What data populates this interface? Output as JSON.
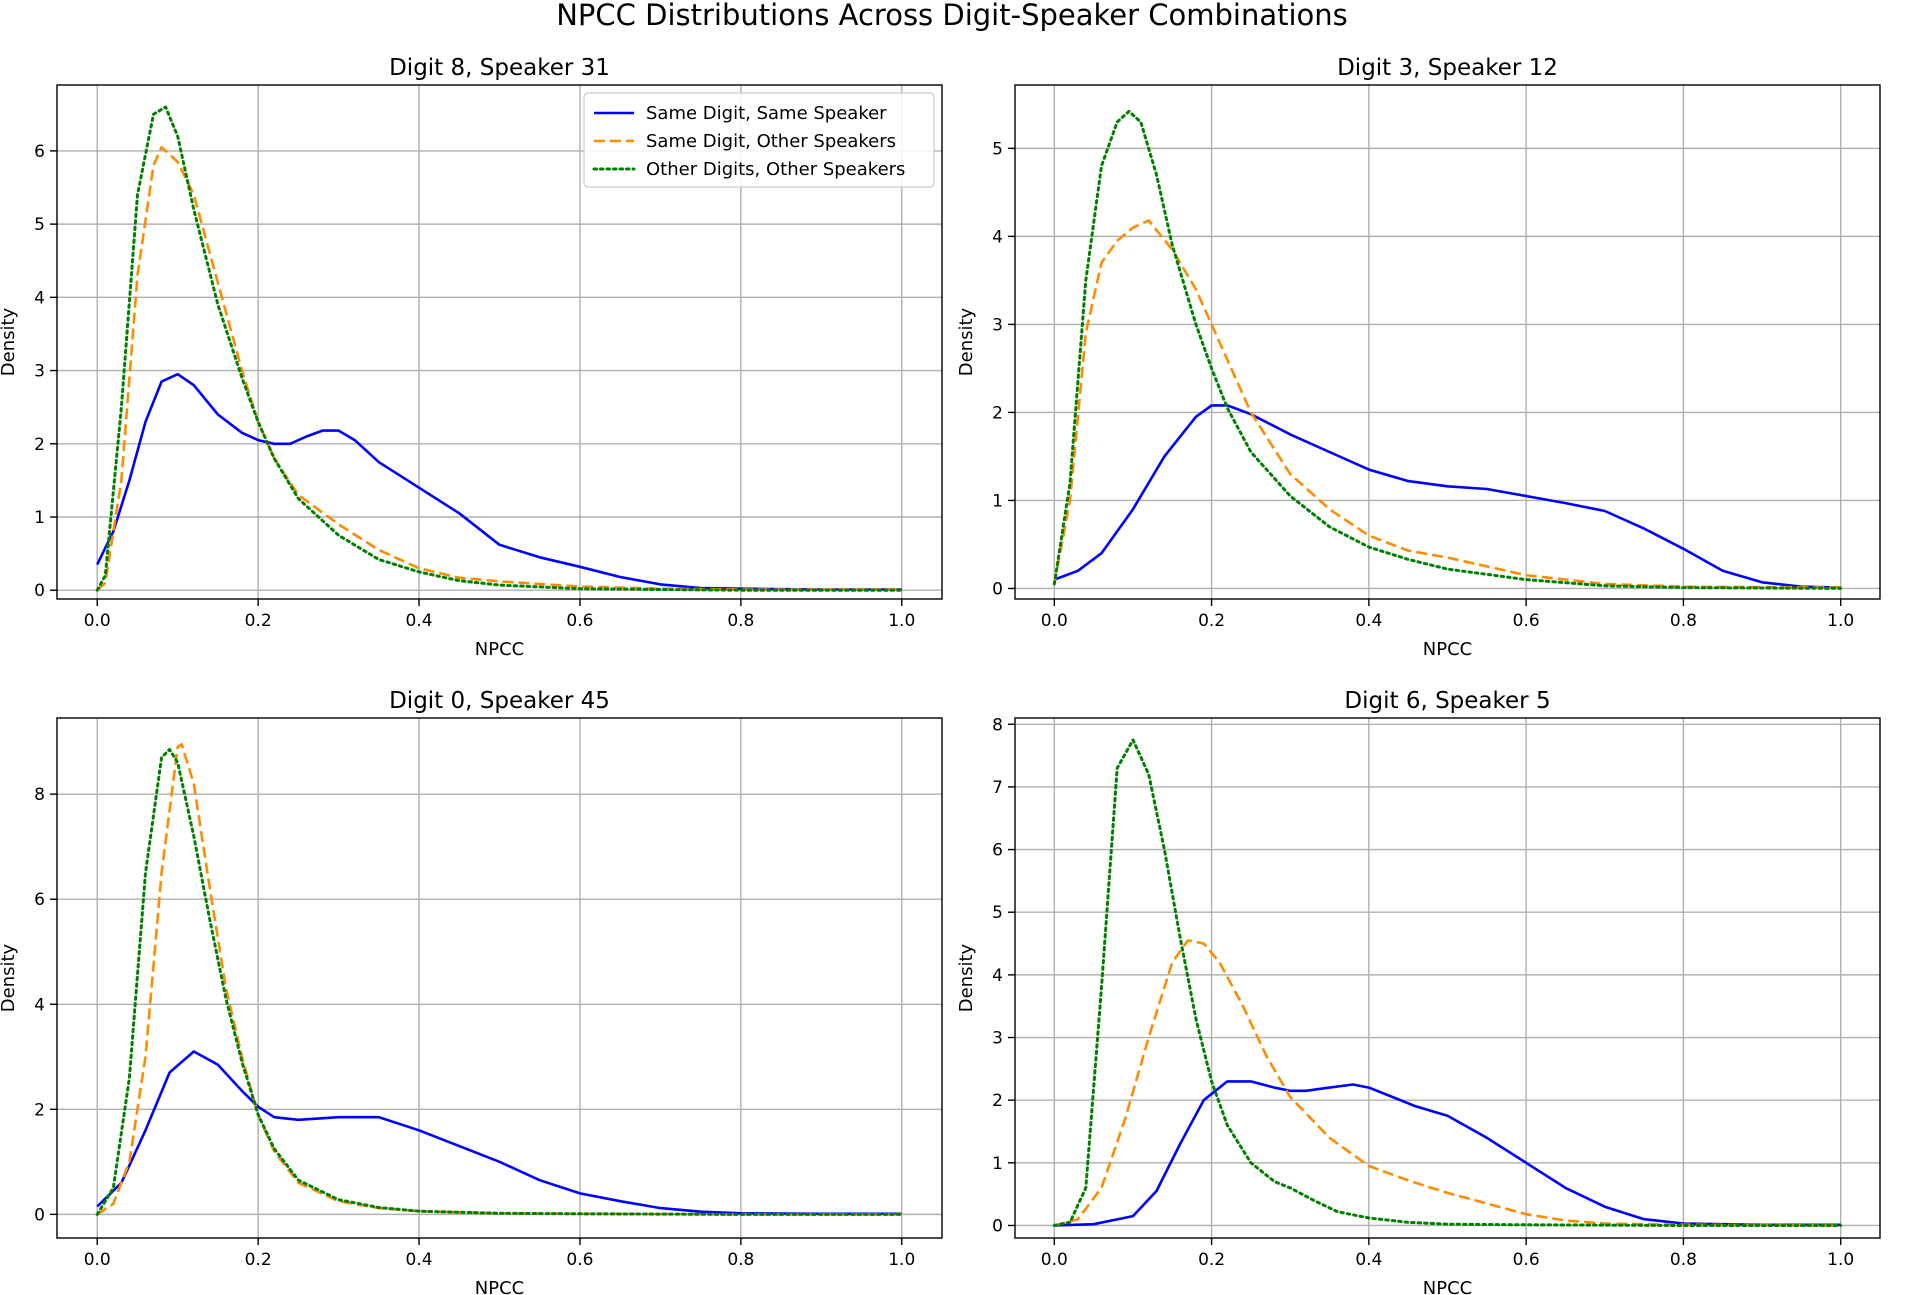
{
  "figure_title": "NPCC Distributions Across Digit-Speaker Combinations",
  "chart_data": [
    {
      "type": "line",
      "title": "Digit 8, Speaker 31",
      "xlabel": "NPCC",
      "ylabel": "Density",
      "xlim": [
        -0.05,
        1.05
      ],
      "ylim": [
        -0.12,
        6.9
      ],
      "xticks": [
        "0.0",
        "0.2",
        "0.4",
        "0.6",
        "0.8",
        "1.0"
      ],
      "yticks": [
        "0",
        "1",
        "2",
        "3",
        "4",
        "5",
        "6"
      ],
      "grid": true,
      "legend": {
        "position": "top-right",
        "entries": [
          "Same Digit, Same Speaker",
          "Same Digit, Other Speakers",
          "Other Digits, Other Speakers"
        ]
      },
      "series": [
        {
          "name": "Same Digit, Same Speaker",
          "color": "#0000ff",
          "dash": "solid",
          "x": [
            0,
            0.02,
            0.04,
            0.06,
            0.08,
            0.1,
            0.12,
            0.15,
            0.18,
            0.2,
            0.22,
            0.24,
            0.26,
            0.28,
            0.3,
            0.32,
            0.35,
            0.4,
            0.45,
            0.5,
            0.55,
            0.6,
            0.65,
            0.7,
            0.75,
            0.8,
            0.9,
            1.0
          ],
          "y": [
            0.35,
            0.8,
            1.5,
            2.3,
            2.85,
            2.95,
            2.8,
            2.4,
            2.15,
            2.05,
            2.0,
            2.0,
            2.1,
            2.18,
            2.18,
            2.05,
            1.75,
            1.4,
            1.05,
            0.62,
            0.45,
            0.32,
            0.18,
            0.08,
            0.03,
            0.02,
            0.01,
            0.01
          ]
        },
        {
          "name": "Same Digit, Other Speakers",
          "color": "#ff8c00",
          "dash": "dashed",
          "x": [
            0,
            0.01,
            0.03,
            0.05,
            0.07,
            0.08,
            0.1,
            0.12,
            0.15,
            0.18,
            0.2,
            0.22,
            0.25,
            0.3,
            0.35,
            0.4,
            0.45,
            0.5,
            0.6,
            0.7,
            0.8,
            1.0
          ],
          "y": [
            0.0,
            0.1,
            1.5,
            4.3,
            5.8,
            6.05,
            5.85,
            5.4,
            4.2,
            3.0,
            2.3,
            1.8,
            1.3,
            0.9,
            0.55,
            0.3,
            0.17,
            0.12,
            0.05,
            0.02,
            0.01,
            0.01
          ]
        },
        {
          "name": "Other Digits, Other Speakers",
          "color": "#008000",
          "dash": "dotted",
          "x": [
            0,
            0.01,
            0.03,
            0.05,
            0.07,
            0.085,
            0.1,
            0.12,
            0.15,
            0.18,
            0.2,
            0.22,
            0.25,
            0.3,
            0.35,
            0.4,
            0.45,
            0.5,
            0.6,
            0.7,
            0.8,
            1.0
          ],
          "y": [
            0.0,
            0.2,
            2.5,
            5.4,
            6.5,
            6.6,
            6.2,
            5.2,
            3.9,
            2.9,
            2.3,
            1.8,
            1.25,
            0.75,
            0.42,
            0.25,
            0.13,
            0.07,
            0.02,
            0.01,
            0.0,
            0.0
          ]
        }
      ]
    },
    {
      "type": "line",
      "title": "Digit 3, Speaker 12",
      "xlabel": "NPCC",
      "ylabel": "Density",
      "xlim": [
        -0.05,
        1.05
      ],
      "ylim": [
        -0.12,
        5.72
      ],
      "xticks": [
        "0.0",
        "0.2",
        "0.4",
        "0.6",
        "0.8",
        "1.0"
      ],
      "yticks": [
        "0",
        "1",
        "2",
        "3",
        "4",
        "5"
      ],
      "grid": true,
      "series": [
        {
          "name": "Same Digit, Same Speaker",
          "color": "#0000ff",
          "dash": "solid",
          "x": [
            0,
            0.03,
            0.06,
            0.1,
            0.14,
            0.18,
            0.2,
            0.22,
            0.25,
            0.3,
            0.35,
            0.4,
            0.45,
            0.5,
            0.55,
            0.6,
            0.65,
            0.7,
            0.75,
            0.8,
            0.85,
            0.9,
            0.95,
            1.0
          ],
          "y": [
            0.1,
            0.2,
            0.4,
            0.9,
            1.5,
            1.95,
            2.08,
            2.08,
            1.98,
            1.75,
            1.55,
            1.35,
            1.22,
            1.16,
            1.13,
            1.05,
            0.97,
            0.88,
            0.68,
            0.45,
            0.2,
            0.07,
            0.02,
            0.01
          ]
        },
        {
          "name": "Same Digit, Other Speakers",
          "color": "#ff8c00",
          "dash": "dashed",
          "x": [
            0,
            0.02,
            0.04,
            0.06,
            0.08,
            0.1,
            0.12,
            0.15,
            0.18,
            0.2,
            0.22,
            0.25,
            0.3,
            0.35,
            0.4,
            0.45,
            0.5,
            0.55,
            0.6,
            0.7,
            0.8,
            1.0
          ],
          "y": [
            0.05,
            1.0,
            2.9,
            3.7,
            3.95,
            4.1,
            4.18,
            3.85,
            3.4,
            3.0,
            2.6,
            2.0,
            1.3,
            0.9,
            0.6,
            0.43,
            0.35,
            0.25,
            0.15,
            0.05,
            0.02,
            0.01
          ]
        },
        {
          "name": "Other Digits, Other Speakers",
          "color": "#008000",
          "dash": "dotted",
          "x": [
            0,
            0.02,
            0.04,
            0.06,
            0.08,
            0.095,
            0.11,
            0.13,
            0.15,
            0.18,
            0.2,
            0.22,
            0.25,
            0.3,
            0.35,
            0.4,
            0.45,
            0.5,
            0.6,
            0.7,
            0.8,
            1.0
          ],
          "y": [
            0.05,
            1.2,
            3.5,
            4.8,
            5.3,
            5.42,
            5.3,
            4.7,
            3.9,
            3.0,
            2.5,
            2.05,
            1.55,
            1.05,
            0.7,
            0.47,
            0.33,
            0.22,
            0.1,
            0.03,
            0.01,
            0.0
          ]
        }
      ]
    },
    {
      "type": "line",
      "title": "Digit 0, Speaker 45",
      "xlabel": "NPCC",
      "ylabel": "Density",
      "xlim": [
        -0.05,
        1.05
      ],
      "ylim": [
        -0.45,
        9.45
      ],
      "xticks": [
        "0.0",
        "0.2",
        "0.4",
        "0.6",
        "0.8",
        "1.0"
      ],
      "yticks": [
        "0",
        "2",
        "4",
        "6",
        "8"
      ],
      "grid": true,
      "series": [
        {
          "name": "Same Digit, Same Speaker",
          "color": "#0000ff",
          "dash": "solid",
          "x": [
            0,
            0.03,
            0.06,
            0.09,
            0.12,
            0.15,
            0.18,
            0.2,
            0.22,
            0.25,
            0.3,
            0.35,
            0.4,
            0.45,
            0.5,
            0.55,
            0.6,
            0.65,
            0.7,
            0.75,
            0.8,
            0.9,
            1.0
          ],
          "y": [
            0.15,
            0.6,
            1.6,
            2.7,
            3.1,
            2.85,
            2.35,
            2.05,
            1.85,
            1.8,
            1.85,
            1.85,
            1.6,
            1.3,
            1.0,
            0.65,
            0.4,
            0.25,
            0.12,
            0.05,
            0.02,
            0.01,
            0.01
          ]
        },
        {
          "name": "Same Digit, Other Speakers",
          "color": "#ff8c00",
          "dash": "dashed",
          "x": [
            0,
            0.02,
            0.04,
            0.06,
            0.08,
            0.1,
            0.105,
            0.12,
            0.14,
            0.16,
            0.18,
            0.2,
            0.22,
            0.25,
            0.3,
            0.35,
            0.4,
            0.5,
            0.6,
            0.8,
            1.0
          ],
          "y": [
            0.0,
            0.2,
            1.0,
            3.0,
            6.5,
            8.9,
            8.95,
            8.2,
            6.2,
            4.3,
            3.0,
            1.9,
            1.2,
            0.6,
            0.25,
            0.12,
            0.06,
            0.02,
            0.01,
            0.0,
            0.0
          ]
        },
        {
          "name": "Other Digits, Other Speakers",
          "color": "#008000",
          "dash": "dotted",
          "x": [
            0,
            0.02,
            0.04,
            0.06,
            0.08,
            0.09,
            0.1,
            0.12,
            0.14,
            0.16,
            0.18,
            0.2,
            0.22,
            0.25,
            0.3,
            0.35,
            0.4,
            0.5,
            0.6,
            0.8,
            1.0
          ],
          "y": [
            0.0,
            0.5,
            2.6,
            6.5,
            8.7,
            8.85,
            8.6,
            7.2,
            5.6,
            4.1,
            2.9,
            1.9,
            1.25,
            0.65,
            0.28,
            0.13,
            0.06,
            0.02,
            0.01,
            0.0,
            0.0
          ]
        }
      ]
    },
    {
      "type": "line",
      "title": "Digit 6, Speaker 5",
      "xlabel": "NPCC",
      "ylabel": "Density",
      "xlim": [
        -0.05,
        1.05
      ],
      "ylim": [
        -0.2,
        8.1
      ],
      "xticks": [
        "0.0",
        "0.2",
        "0.4",
        "0.6",
        "0.8",
        "1.0"
      ],
      "yticks": [
        "0",
        "1",
        "2",
        "3",
        "4",
        "5",
        "6",
        "7",
        "8"
      ],
      "grid": true,
      "series": [
        {
          "name": "Same Digit, Same Speaker",
          "color": "#0000ff",
          "dash": "solid",
          "x": [
            0,
            0.05,
            0.1,
            0.13,
            0.16,
            0.19,
            0.22,
            0.25,
            0.28,
            0.3,
            0.32,
            0.35,
            0.38,
            0.4,
            0.43,
            0.46,
            0.5,
            0.55,
            0.6,
            0.65,
            0.7,
            0.75,
            0.8,
            0.9,
            1.0
          ],
          "y": [
            0.0,
            0.02,
            0.15,
            0.55,
            1.3,
            2.0,
            2.3,
            2.3,
            2.2,
            2.15,
            2.15,
            2.2,
            2.25,
            2.2,
            2.05,
            1.9,
            1.75,
            1.4,
            1.0,
            0.6,
            0.3,
            0.1,
            0.03,
            0.01,
            0.01
          ]
        },
        {
          "name": "Same Digit, Other Speakers",
          "color": "#ff8c00",
          "dash": "dashed",
          "x": [
            0,
            0.03,
            0.06,
            0.09,
            0.12,
            0.15,
            0.17,
            0.19,
            0.21,
            0.24,
            0.27,
            0.3,
            0.35,
            0.4,
            0.45,
            0.5,
            0.55,
            0.6,
            0.65,
            0.7,
            0.8,
            1.0
          ],
          "y": [
            0.0,
            0.1,
            0.6,
            1.7,
            3.0,
            4.2,
            4.55,
            4.5,
            4.2,
            3.5,
            2.7,
            2.05,
            1.4,
            0.95,
            0.72,
            0.52,
            0.35,
            0.18,
            0.08,
            0.03,
            0.01,
            0.0
          ]
        },
        {
          "name": "Other Digits, Other Speakers",
          "color": "#008000",
          "dash": "dotted",
          "x": [
            0,
            0.02,
            0.04,
            0.06,
            0.08,
            0.1,
            0.12,
            0.14,
            0.16,
            0.18,
            0.2,
            0.22,
            0.25,
            0.28,
            0.3,
            0.33,
            0.36,
            0.4,
            0.45,
            0.5,
            0.6,
            0.8,
            1.0
          ],
          "y": [
            0.0,
            0.05,
            0.6,
            3.8,
            7.3,
            7.75,
            7.2,
            6.0,
            4.6,
            3.3,
            2.3,
            1.6,
            1.0,
            0.7,
            0.6,
            0.4,
            0.22,
            0.12,
            0.05,
            0.02,
            0.01,
            0.0,
            0.0
          ]
        }
      ]
    }
  ]
}
